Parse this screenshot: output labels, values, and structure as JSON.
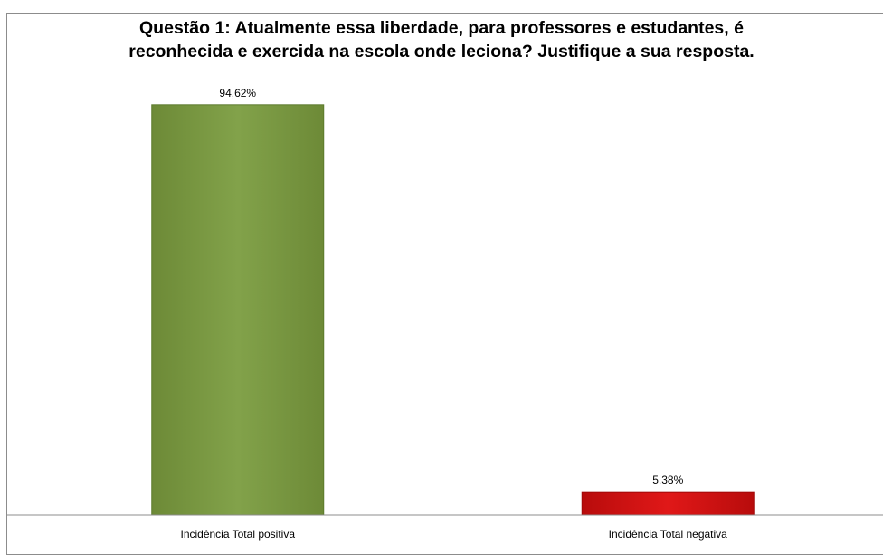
{
  "chart_data": {
    "type": "bar",
    "title_lines": [
      "Questão 1: Atualmente essa liberdade, para professores e estudantes, é",
      "reconhecida e exercida na escola onde leciona? Justifique a sua resposta."
    ],
    "categories": [
      "Incidência Total positiva",
      "Incidência Total negativa"
    ],
    "values": [
      94.62,
      5.38
    ],
    "data_labels": [
      "94,62%",
      "5,38%"
    ],
    "colors": [
      "#7f9f45",
      "#d01010"
    ],
    "ylim": [
      0,
      100
    ],
    "grid": false,
    "legend": "none"
  }
}
